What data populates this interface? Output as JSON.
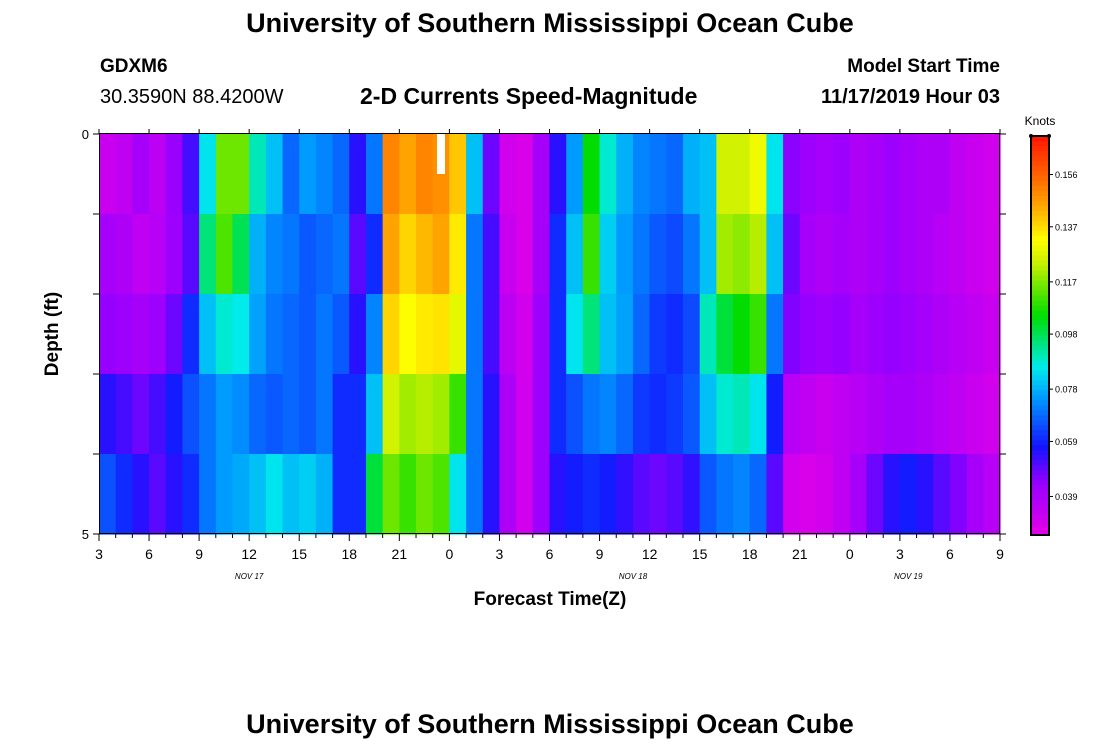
{
  "header": {
    "title": "University of Southern Mississippi Ocean Cube",
    "station_id": "GDXM6",
    "coordinates": "30.3590N 88.4200W",
    "subtitle": "2-D Currents Speed-Magnitude",
    "model_label": "Model Start Time",
    "model_time": "11/17/2019 Hour 03"
  },
  "footer": {
    "title": "University of Southern Mississippi Ocean Cube"
  },
  "chart_data": {
    "type": "heatmap",
    "title": "2-D Currents Speed-Magnitude",
    "xlabel": "Forecast Time(Z)",
    "ylabel": "Depth (ft)",
    "colorbar_label": "Knots",
    "colorbar_ticks": [
      0.039,
      0.059,
      0.078,
      0.098,
      0.117,
      0.137,
      0.156
    ],
    "value_range": [
      0.025,
      0.17
    ],
    "x_range_hours": [
      0,
      54
    ],
    "x_ticks": [
      {
        "hour": 0,
        "label": "3"
      },
      {
        "hour": 3,
        "label": "6"
      },
      {
        "hour": 6,
        "label": "9"
      },
      {
        "hour": 9,
        "label": "12"
      },
      {
        "hour": 12,
        "label": "15"
      },
      {
        "hour": 15,
        "label": "18"
      },
      {
        "hour": 18,
        "label": "21"
      },
      {
        "hour": 21,
        "label": "0"
      },
      {
        "hour": 24,
        "label": "3"
      },
      {
        "hour": 27,
        "label": "6"
      },
      {
        "hour": 30,
        "label": "9"
      },
      {
        "hour": 33,
        "label": "12"
      },
      {
        "hour": 36,
        "label": "15"
      },
      {
        "hour": 39,
        "label": "18"
      },
      {
        "hour": 42,
        "label": "21"
      },
      {
        "hour": 45,
        "label": "0"
      },
      {
        "hour": 48,
        "label": "3"
      },
      {
        "hour": 51,
        "label": "6"
      },
      {
        "hour": 54,
        "label": "9"
      }
    ],
    "date_labels": [
      {
        "hour": 9,
        "label": "NOV 17"
      },
      {
        "hour": 32,
        "label": "NOV 18"
      },
      {
        "hour": 48.5,
        "label": "NOV 19"
      }
    ],
    "y_range": [
      0,
      5
    ],
    "y_tick_labels": [
      {
        "depth": 0,
        "label": "0"
      },
      {
        "depth": 5,
        "label": "5"
      }
    ],
    "depth_layers": 5,
    "time_columns": 54,
    "values": [
      [
        0.032,
        0.034,
        0.04,
        0.035,
        0.043,
        0.052,
        0.085,
        0.115,
        0.115,
        0.09,
        0.08,
        0.068,
        0.075,
        0.072,
        0.068,
        0.055,
        0.07,
        0.15,
        0.145,
        0.15,
        0.148,
        0.14,
        0.08,
        0.048,
        0.03,
        0.028,
        0.04,
        0.055,
        0.075,
        0.105,
        0.088,
        0.078,
        0.072,
        0.07,
        0.068,
        0.078,
        0.08,
        0.125,
        0.125,
        0.13,
        0.085,
        0.045,
        0.042,
        0.04,
        0.042,
        0.038,
        0.04,
        0.042,
        0.04,
        0.038,
        0.038,
        0.034,
        0.032,
        0.03
      ],
      [
        0.04,
        0.038,
        0.034,
        0.036,
        0.042,
        0.05,
        0.095,
        0.112,
        0.098,
        0.078,
        0.072,
        0.07,
        0.066,
        0.068,
        0.07,
        0.05,
        0.06,
        0.145,
        0.138,
        0.142,
        0.145,
        0.135,
        0.07,
        0.052,
        0.032,
        0.028,
        0.04,
        0.06,
        0.08,
        0.11,
        0.082,
        0.075,
        0.07,
        0.066,
        0.064,
        0.07,
        0.08,
        0.12,
        0.118,
        0.122,
        0.08,
        0.048,
        0.04,
        0.038,
        0.04,
        0.038,
        0.04,
        0.042,
        0.04,
        0.038,
        0.036,
        0.034,
        0.032,
        0.03
      ],
      [
        0.044,
        0.042,
        0.04,
        0.042,
        0.048,
        0.06,
        0.08,
        0.088,
        0.086,
        0.076,
        0.07,
        0.068,
        0.066,
        0.07,
        0.066,
        0.055,
        0.072,
        0.138,
        0.132,
        0.135,
        0.136,
        0.128,
        0.07,
        0.052,
        0.035,
        0.03,
        0.042,
        0.06,
        0.085,
        0.095,
        0.08,
        0.076,
        0.068,
        0.062,
        0.06,
        0.064,
        0.09,
        0.1,
        0.105,
        0.11,
        0.07,
        0.046,
        0.044,
        0.042,
        0.044,
        0.04,
        0.042,
        0.044,
        0.042,
        0.04,
        0.038,
        0.036,
        0.034,
        0.032
      ],
      [
        0.055,
        0.052,
        0.048,
        0.052,
        0.058,
        0.065,
        0.07,
        0.075,
        0.073,
        0.068,
        0.066,
        0.068,
        0.066,
        0.07,
        0.06,
        0.06,
        0.08,
        0.125,
        0.12,
        0.122,
        0.12,
        0.11,
        0.07,
        0.055,
        0.038,
        0.03,
        0.042,
        0.06,
        0.065,
        0.07,
        0.072,
        0.068,
        0.062,
        0.06,
        0.062,
        0.066,
        0.08,
        0.088,
        0.09,
        0.085,
        0.058,
        0.036,
        0.034,
        0.032,
        0.034,
        0.036,
        0.038,
        0.04,
        0.04,
        0.038,
        0.036,
        0.034,
        0.032,
        0.03
      ],
      [
        0.065,
        0.06,
        0.055,
        0.05,
        0.055,
        0.06,
        0.07,
        0.075,
        0.077,
        0.08,
        0.085,
        0.08,
        0.082,
        0.078,
        0.06,
        0.06,
        0.1,
        0.115,
        0.11,
        0.115,
        0.112,
        0.085,
        0.07,
        0.055,
        0.038,
        0.03,
        0.042,
        0.055,
        0.058,
        0.06,
        0.058,
        0.054,
        0.05,
        0.048,
        0.05,
        0.054,
        0.066,
        0.07,
        0.072,
        0.068,
        0.05,
        0.03,
        0.028,
        0.03,
        0.034,
        0.04,
        0.048,
        0.055,
        0.058,
        0.055,
        0.05,
        0.046,
        0.04,
        0.036
      ]
    ]
  }
}
